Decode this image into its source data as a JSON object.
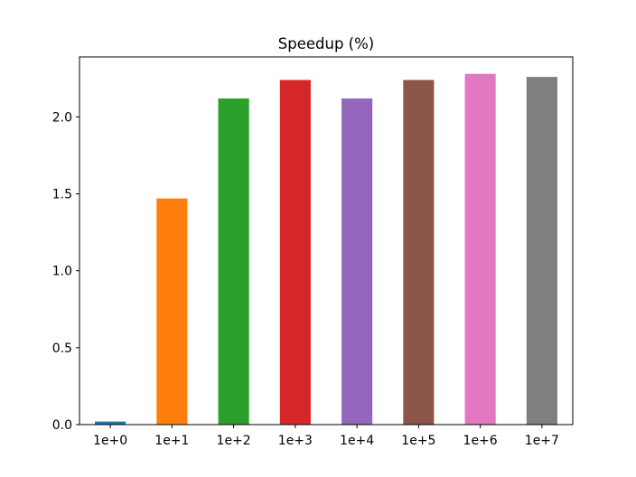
{
  "chart_data": {
    "type": "bar",
    "title": "Speedup (%)",
    "xlabel": "",
    "ylabel": "",
    "categories": [
      "1e+0",
      "1e+1",
      "1e+2",
      "1e+3",
      "1e+4",
      "1e+5",
      "1e+6",
      "1e+7"
    ],
    "values": [
      0.02,
      1.47,
      2.12,
      2.24,
      2.12,
      2.24,
      2.28,
      2.26
    ],
    "colors": [
      "#1f77b4",
      "#ff7f0e",
      "#2ca02c",
      "#d62728",
      "#9467bd",
      "#8c564b",
      "#e377c2",
      "#7f7f7f"
    ],
    "ylim": [
      0,
      2.39
    ],
    "yticks": [
      0.0,
      0.5,
      1.0,
      1.5,
      2.0
    ],
    "ytick_labels": [
      "0.0",
      "0.5",
      "1.0",
      "1.5",
      "2.0"
    ],
    "grid": false,
    "legend": "none"
  }
}
